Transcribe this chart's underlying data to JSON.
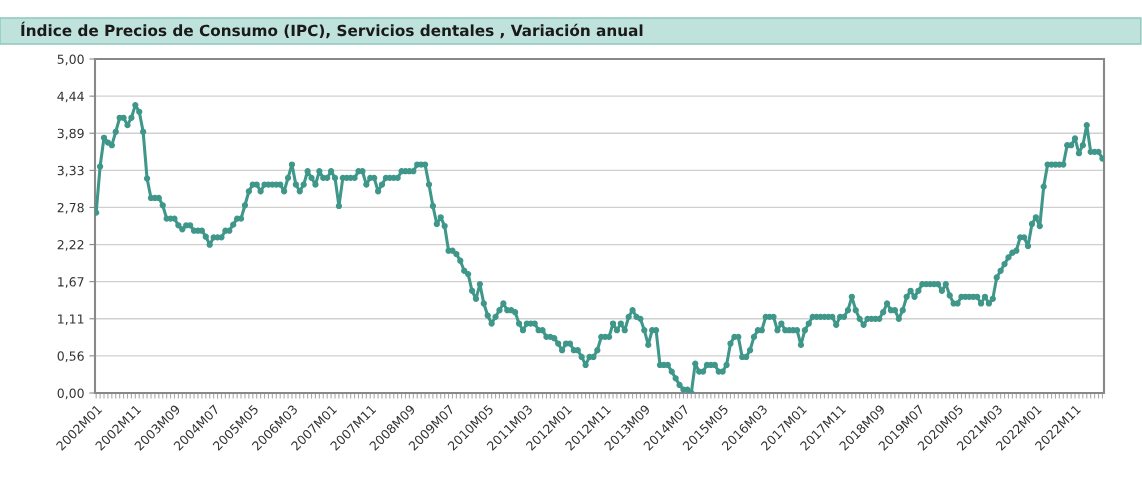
{
  "chart_data": {
    "type": "line",
    "title": "Índice de Precios de Consumo (IPC), Servicios dentales , Variación anual",
    "categories": [
      "2002M01",
      null,
      null,
      null,
      null,
      null,
      null,
      null,
      null,
      null,
      "2002M11",
      null,
      null,
      null,
      null,
      null,
      null,
      null,
      null,
      null,
      "2003M09",
      null,
      null,
      null,
      null,
      null,
      null,
      null,
      null,
      null,
      "2004M07",
      null,
      null,
      null,
      null,
      null,
      null,
      null,
      null,
      null,
      "2005M05",
      null,
      null,
      null,
      null,
      null,
      null,
      null,
      null,
      null,
      "2006M03",
      null,
      null,
      null,
      null,
      null,
      null,
      null,
      null,
      null,
      "2007M01",
      null,
      null,
      null,
      null,
      null,
      null,
      null,
      null,
      null,
      "2007M11",
      null,
      null,
      null,
      null,
      null,
      null,
      null,
      null,
      null,
      "2008M09",
      null,
      null,
      null,
      null,
      null,
      null,
      null,
      null,
      null,
      "2009M07",
      null,
      null,
      null,
      null,
      null,
      null,
      null,
      null,
      null,
      "2010M05",
      null,
      null,
      null,
      null,
      null,
      null,
      null,
      null,
      null,
      "2011M03",
      null,
      null,
      null,
      null,
      null,
      null,
      null,
      null,
      null,
      "2012M01",
      null,
      null,
      null,
      null,
      null,
      null,
      null,
      null,
      null,
      "2012M11",
      null,
      null,
      null,
      null,
      null,
      null,
      null,
      null,
      null,
      "2013M09",
      null,
      null,
      null,
      null,
      null,
      null,
      null,
      null,
      null,
      "2014M07",
      null,
      null,
      null,
      null,
      null,
      null,
      null,
      null,
      null,
      "2015M05",
      null,
      null,
      null,
      null,
      null,
      null,
      null,
      null,
      null,
      "2016M03",
      null,
      null,
      null,
      null,
      null,
      null,
      null,
      null,
      null,
      "2017M01",
      null,
      null,
      null,
      null,
      null,
      null,
      null,
      null,
      null,
      "2017M11",
      null,
      null,
      null,
      null,
      null,
      null,
      null,
      null,
      null,
      "2018M09",
      null,
      null,
      null,
      null,
      null,
      null,
      null,
      null,
      null,
      "2019M07",
      null,
      null,
      null,
      null,
      null,
      null,
      null,
      null,
      null,
      "2020M05",
      null,
      null,
      null,
      null,
      null,
      null,
      null,
      null,
      null,
      "2021M03",
      null,
      null,
      null,
      null,
      null,
      null,
      null,
      null,
      null,
      "2022M01",
      null,
      null,
      null,
      null,
      null,
      null,
      null,
      null,
      null,
      "2022M11",
      null,
      null,
      null,
      null,
      null,
      null,
      null
    ],
    "series": [
      {
        "color": "#3f978a",
        "values": [
          2.7,
          3.39,
          3.82,
          3.75,
          3.71,
          3.91,
          4.12,
          4.12,
          4.01,
          4.12,
          4.31,
          4.21,
          3.91,
          3.21,
          2.92,
          2.92,
          2.92,
          2.81,
          2.61,
          2.61,
          2.61,
          2.51,
          2.45,
          2.51,
          2.51,
          2.43,
          2.43,
          2.43,
          2.34,
          2.22,
          2.33,
          2.33,
          2.33,
          2.43,
          2.43,
          2.52,
          2.61,
          2.61,
          2.81,
          3.02,
          3.12,
          3.12,
          3.02,
          3.12,
          3.12,
          3.12,
          3.12,
          3.12,
          3.02,
          3.22,
          3.42,
          3.12,
          3.02,
          3.12,
          3.32,
          3.22,
          3.12,
          3.32,
          3.22,
          3.22,
          3.32,
          3.22,
          2.8,
          3.22,
          3.22,
          3.22,
          3.22,
          3.32,
          3.32,
          3.12,
          3.22,
          3.22,
          3.02,
          3.12,
          3.22,
          3.22,
          3.22,
          3.22,
          3.32,
          3.32,
          3.32,
          3.32,
          3.42,
          3.42,
          3.42,
          3.12,
          2.8,
          2.53,
          2.63,
          2.5,
          2.13,
          2.13,
          2.08,
          1.98,
          1.83,
          1.78,
          1.53,
          1.41,
          1.63,
          1.34,
          1.16,
          1.04,
          1.14,
          1.24,
          1.34,
          1.24,
          1.24,
          1.21,
          1.04,
          0.94,
          1.04,
          1.04,
          1.04,
          0.94,
          0.94,
          0.84,
          0.84,
          0.82,
          0.74,
          0.64,
          0.74,
          0.74,
          0.64,
          0.64,
          0.54,
          0.42,
          0.54,
          0.54,
          0.64,
          0.84,
          0.84,
          0.84,
          1.04,
          0.94,
          1.04,
          0.94,
          1.14,
          1.24,
          1.14,
          1.11,
          0.94,
          0.72,
          0.94,
          0.94,
          0.42,
          0.42,
          0.42,
          0.32,
          0.22,
          0.12,
          0.05,
          0.05,
          0.0,
          0.44,
          0.32,
          0.32,
          0.42,
          0.42,
          0.42,
          0.32,
          0.32,
          0.42,
          0.74,
          0.84,
          0.84,
          0.54,
          0.54,
          0.64,
          0.84,
          0.94,
          0.94,
          1.14,
          1.14,
          1.14,
          0.94,
          1.04,
          0.94,
          0.94,
          0.94,
          0.94,
          0.72,
          0.94,
          1.04,
          1.14,
          1.14,
          1.14,
          1.14,
          1.14,
          1.14,
          1.02,
          1.14,
          1.14,
          1.24,
          1.44,
          1.24,
          1.11,
          1.02,
          1.11,
          1.11,
          1.11,
          1.11,
          1.21,
          1.34,
          1.24,
          1.24,
          1.11,
          1.24,
          1.44,
          1.53,
          1.44,
          1.53,
          1.63,
          1.63,
          1.63,
          1.63,
          1.63,
          1.53,
          1.63,
          1.46,
          1.34,
          1.34,
          1.44,
          1.44,
          1.44,
          1.44,
          1.44,
          1.34,
          1.44,
          1.34,
          1.41,
          1.73,
          1.83,
          1.93,
          2.03,
          2.1,
          2.13,
          2.33,
          2.33,
          2.2,
          2.53,
          2.63,
          2.5,
          3.09,
          3.42,
          3.42,
          3.42,
          3.42,
          3.42,
          3.71,
          3.71,
          3.81,
          3.59,
          3.71,
          4.01,
          3.61,
          3.61,
          3.61,
          3.51
        ]
      }
    ],
    "ylim": [
      0,
      5
    ],
    "yticks": [
      {
        "value": 0,
        "label": "0,00"
      },
      {
        "value": 0.556,
        "label": "0,56"
      },
      {
        "value": 1.111,
        "label": "1,11"
      },
      {
        "value": 1.667,
        "label": "1,67"
      },
      {
        "value": 2.222,
        "label": "2,22"
      },
      {
        "value": 2.778,
        "label": "2,78"
      },
      {
        "value": 3.333,
        "label": "3,33"
      },
      {
        "value": 3.889,
        "label": "3,89"
      },
      {
        "value": 4.444,
        "label": "4,44"
      },
      {
        "value": 5,
        "label": "5,00"
      }
    ],
    "grid": "y",
    "marker": "circle",
    "line_style": "solid"
  }
}
